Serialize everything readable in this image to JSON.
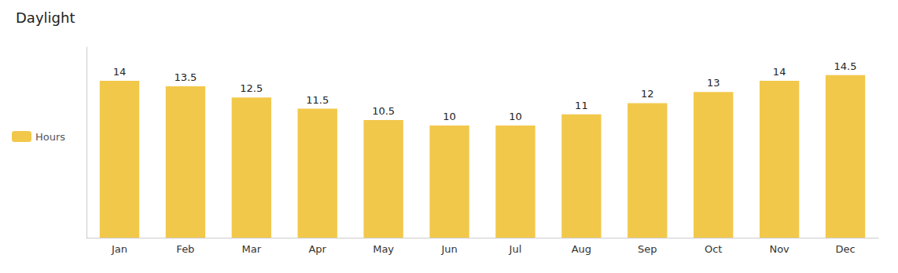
{
  "chart_data": {
    "type": "bar",
    "title": "Daylight",
    "categories": [
      "Jan",
      "Feb",
      "Mar",
      "Apr",
      "May",
      "Jun",
      "Jul",
      "Aug",
      "Sep",
      "Oct",
      "Nov",
      "Dec"
    ],
    "series": [
      {
        "name": "Hours",
        "color": "#F2C84B",
        "values": [
          14,
          13.5,
          12.5,
          11.5,
          10.5,
          10,
          10,
          11,
          12,
          13,
          14,
          14.5
        ]
      }
    ],
    "ylim": [
      0,
      17
    ],
    "yticks": [],
    "grid": false,
    "legend": "left",
    "data_labels": true,
    "tick_labels": "x"
  }
}
